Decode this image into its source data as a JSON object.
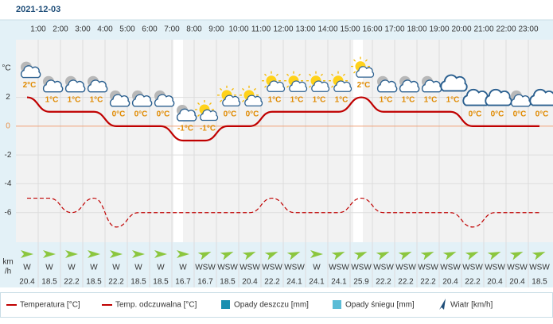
{
  "header": {
    "date": "2021-12-03"
  },
  "chart_data": {
    "type": "line",
    "x_labels": [
      "1:00",
      "2:00",
      "3:00",
      "4:00",
      "5:00",
      "6:00",
      "7:00",
      "8:00",
      "9:00",
      "10:00",
      "11:00",
      "12:00",
      "13:00",
      "14:00",
      "15:00",
      "16:00",
      "17:00",
      "18:00",
      "19:00",
      "20:00",
      "21:00",
      "22:00",
      "23:00"
    ],
    "y_unit": "°C",
    "ylim": [
      -8,
      6
    ],
    "yticks": [
      -6,
      -4,
      -2,
      0,
      2
    ],
    "grid": true,
    "series": [
      {
        "name": "Temperatura [°C]",
        "color": "#c00000",
        "values": [
          2,
          1,
          1,
          1,
          0,
          0,
          0,
          -1,
          -1,
          0,
          0,
          1,
          1,
          1,
          1,
          2,
          1,
          1,
          1,
          1,
          0,
          0,
          0,
          0
        ],
        "value_labels": [
          "2°C",
          "1°C",
          "1°C",
          "1°C",
          "0°C",
          "0°C",
          "0°C",
          "-1°C",
          "-1°C",
          "0°C",
          "0°C",
          "1°C",
          "1°C",
          "1°C",
          "1°C",
          "2°C",
          "1°C",
          "1°C",
          "1°C",
          "1°C",
          "0°C",
          "0°C",
          "0°C",
          "0°C"
        ]
      },
      {
        "name": "Temp. odczuwalna [°C]",
        "color": "#c00000",
        "dashed": true,
        "values": [
          -5,
          -5,
          -6,
          -5,
          -7,
          -6,
          -6,
          -6,
          -6,
          -6,
          -6,
          -5,
          -6,
          -6,
          -6,
          -5,
          -6,
          -6,
          -6,
          -6,
          -7,
          -6,
          -6,
          -6
        ]
      }
    ],
    "legend_extra": [
      {
        "name": "Opady deszczu [mm]",
        "color": "#1a8fb0"
      },
      {
        "name": "Opady śniegu [mm]",
        "color": "#5bbcd6"
      }
    ],
    "wind": {
      "unit": [
        "km",
        "/h"
      ],
      "legend": "Wiatr [km/h]",
      "color": "#8cc63f",
      "directions": [
        "W",
        "W",
        "W",
        "W",
        "W",
        "W",
        "W",
        "W",
        "WSW",
        "WSW",
        "WSW",
        "WSW",
        "WSW",
        "W",
        "WSW",
        "WSW",
        "WSW",
        "WSW",
        "WSW",
        "WSW",
        "WSW",
        "WSW",
        "WSW",
        "WSW"
      ],
      "speeds": [
        20.4,
        18.5,
        22.2,
        18.5,
        22.2,
        18.5,
        18.5,
        16.7,
        16.7,
        18.5,
        20.4,
        22.2,
        24.1,
        24.1,
        24.1,
        25.9,
        22.2,
        22.2,
        22.2,
        20.4,
        22.2,
        20.4,
        20.4,
        18.5
      ]
    }
  }
}
